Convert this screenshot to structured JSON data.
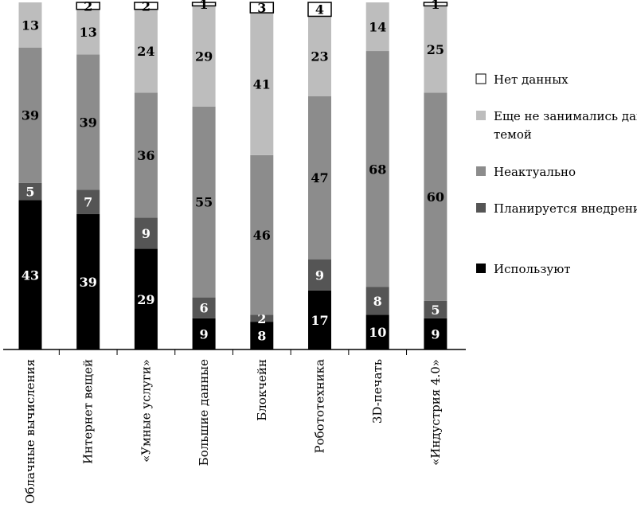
{
  "chart_data": {
    "type": "bar",
    "stacked": true,
    "orientation": "vertical",
    "categories": [
      "Облачные вычисления",
      "Интернет вещей",
      "«Умные услуги»",
      "Большие данные",
      "Блокчейн",
      "Робототехника",
      "3D-печать",
      "«Индустрия 4.0»"
    ],
    "series": [
      {
        "name": "Используют",
        "color": "#000000",
        "label_color": "#ffffff",
        "values": [
          43,
          39,
          29,
          9,
          8,
          17,
          10,
          9
        ]
      },
      {
        "name": "Планируется внедрение",
        "color": "#555555",
        "label_color": "#ffffff",
        "values": [
          5,
          7,
          9,
          6,
          2,
          9,
          8,
          5
        ]
      },
      {
        "name": "Неактуально",
        "color": "#8c8c8c",
        "label_color": "#000000",
        "values": [
          39,
          39,
          36,
          55,
          46,
          47,
          68,
          60
        ]
      },
      {
        "name": "Еще не занимались данной темой",
        "color": "#bdbdbd",
        "label_color": "#000000",
        "values": [
          13,
          13,
          24,
          29,
          41,
          23,
          14,
          25
        ]
      },
      {
        "name": "Нет данных",
        "color": "#ffffff",
        "label_color": "#000000",
        "values": [
          0,
          2,
          2,
          1,
          3,
          4,
          0,
          1
        ]
      }
    ],
    "legend_order": [
      "Нет данных",
      "Еще не занимались данной темой",
      "Неактуально",
      "Планируется внедрение",
      "Используют"
    ],
    "ylim": [
      0,
      100
    ],
    "grid": false,
    "legend_position": "right",
    "title": "",
    "xlabel": "",
    "ylabel": ""
  }
}
